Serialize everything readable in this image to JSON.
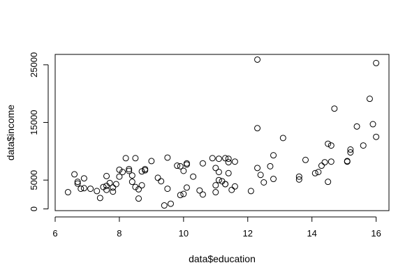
{
  "chart_data": {
    "type": "scatter",
    "title": "",
    "xlabel": "data$education",
    "ylabel": "data$income",
    "xlim": [
      6,
      16.4
    ],
    "ylim": [
      -300,
      26800
    ],
    "xticks": [
      "6",
      "8",
      "10",
      "12",
      "14",
      "16"
    ],
    "yticks": [
      "0",
      "5000",
      "15000",
      "25000"
    ],
    "xtick_values": [
      6,
      8,
      10,
      12,
      14,
      16
    ],
    "ytick_values": [
      0,
      5000,
      15000,
      25000
    ],
    "grid": false,
    "marker": "open-circle",
    "points": [
      [
        6.4,
        2900
      ],
      [
        6.6,
        6000
      ],
      [
        6.7,
        4700
      ],
      [
        6.7,
        4400
      ],
      [
        6.8,
        3500
      ],
      [
        6.9,
        3600
      ],
      [
        6.9,
        5300
      ],
      [
        7.1,
        3500
      ],
      [
        7.3,
        3100
      ],
      [
        7.4,
        1900
      ],
      [
        7.5,
        3800
      ],
      [
        7.6,
        5700
      ],
      [
        7.6,
        4000
      ],
      [
        7.6,
        3300
      ],
      [
        7.7,
        4500
      ],
      [
        7.8,
        3000
      ],
      [
        7.8,
        3700
      ],
      [
        7.9,
        4300
      ],
      [
        8.0,
        5600
      ],
      [
        8.0,
        6800
      ],
      [
        8.1,
        6400
      ],
      [
        8.2,
        8800
      ],
      [
        8.3,
        6900
      ],
      [
        8.3,
        6600
      ],
      [
        8.4,
        5800
      ],
      [
        8.4,
        4700
      ],
      [
        8.5,
        8800
      ],
      [
        8.5,
        3800
      ],
      [
        8.6,
        3400
      ],
      [
        8.6,
        1800
      ],
      [
        8.7,
        4100
      ],
      [
        8.7,
        6500
      ],
      [
        8.8,
        6900
      ],
      [
        8.8,
        6700
      ],
      [
        9.0,
        8300
      ],
      [
        9.2,
        5400
      ],
      [
        9.3,
        4800
      ],
      [
        9.4,
        600
      ],
      [
        9.5,
        8900
      ],
      [
        9.5,
        3500
      ],
      [
        9.6,
        900
      ],
      [
        9.8,
        7500
      ],
      [
        9.9,
        7400
      ],
      [
        9.9,
        2400
      ],
      [
        10.0,
        6600
      ],
      [
        10.0,
        2600
      ],
      [
        10.1,
        7700
      ],
      [
        10.1,
        7900
      ],
      [
        10.1,
        3700
      ],
      [
        10.3,
        5600
      ],
      [
        10.5,
        3200
      ],
      [
        10.6,
        7900
      ],
      [
        10.6,
        2500
      ],
      [
        10.9,
        8800
      ],
      [
        11.0,
        4100
      ],
      [
        11.0,
        2900
      ],
      [
        11.0,
        7100
      ],
      [
        11.1,
        8700
      ],
      [
        11.1,
        6400
      ],
      [
        11.1,
        5000
      ],
      [
        11.2,
        4800
      ],
      [
        11.3,
        4300
      ],
      [
        11.3,
        8800
      ],
      [
        11.3,
        4300
      ],
      [
        11.4,
        8700
      ],
      [
        11.4,
        8100
      ],
      [
        11.4,
        6200
      ],
      [
        11.5,
        3300
      ],
      [
        11.6,
        3900
      ],
      [
        11.6,
        8200
      ],
      [
        12.1,
        3100
      ],
      [
        12.3,
        25900
      ],
      [
        12.3,
        14000
      ],
      [
        12.3,
        7100
      ],
      [
        12.4,
        5900
      ],
      [
        12.5,
        4600
      ],
      [
        12.7,
        7400
      ],
      [
        12.8,
        9300
      ],
      [
        12.8,
        5200
      ],
      [
        13.1,
        12300
      ],
      [
        13.6,
        5600
      ],
      [
        13.6,
        5100
      ],
      [
        13.8,
        8500
      ],
      [
        14.1,
        6200
      ],
      [
        14.2,
        6400
      ],
      [
        14.3,
        7500
      ],
      [
        14.4,
        8100
      ],
      [
        14.5,
        11300
      ],
      [
        14.5,
        4700
      ],
      [
        14.6,
        8200
      ],
      [
        14.6,
        11000
      ],
      [
        14.7,
        17400
      ],
      [
        15.1,
        8300
      ],
      [
        15.1,
        8200
      ],
      [
        15.2,
        10300
      ],
      [
        15.2,
        9800
      ],
      [
        15.4,
        14300
      ],
      [
        15.6,
        11000
      ],
      [
        15.8,
        19100
      ],
      [
        15.9,
        14700
      ],
      [
        16.0,
        25300
      ],
      [
        16.0,
        12500
      ]
    ]
  }
}
